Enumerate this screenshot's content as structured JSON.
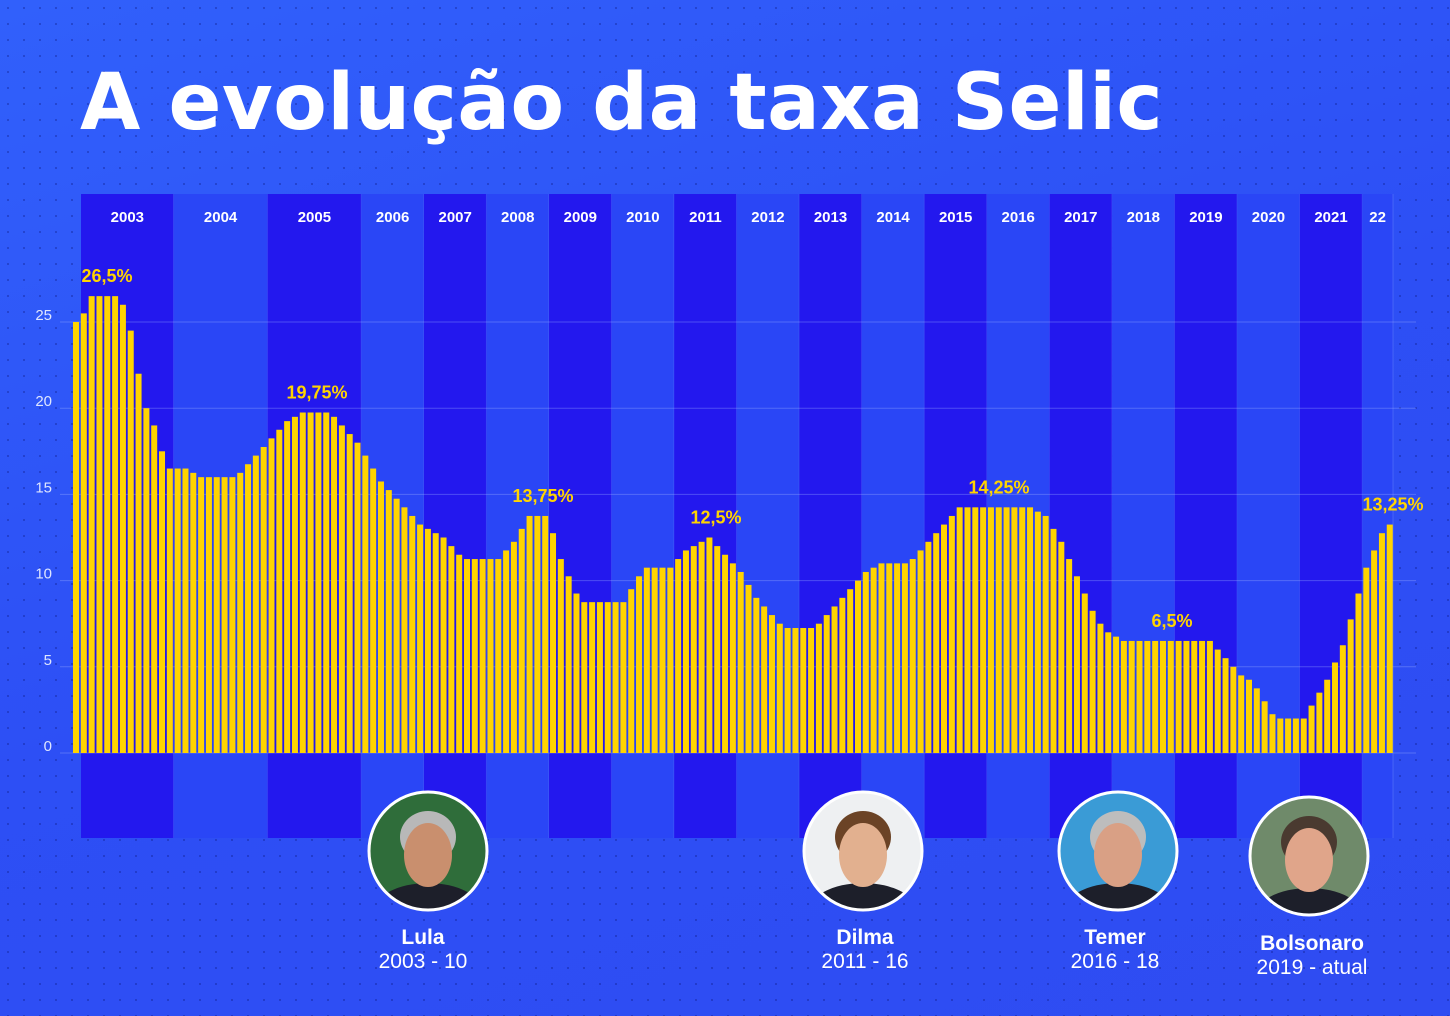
{
  "title": "A evolução da taxa Selic",
  "colors": {
    "bar": "#ffd400",
    "band_dark": "#2318ee",
    "band_light": "#2a46f6",
    "label": "#ffd400"
  },
  "chart_data": {
    "type": "bar",
    "title": "A evolução da taxa Selic",
    "ylim": [
      0,
      27
    ],
    "yticks": [
      "0",
      "5",
      "10",
      "15",
      "20",
      "25"
    ],
    "grid": true,
    "years": [
      {
        "label": "2003",
        "values": [
          25,
          25.5,
          26.5,
          26.5,
          26.5,
          26.5,
          26,
          24.5,
          22,
          20,
          19,
          17.5,
          16.5
        ]
      },
      {
        "label": "2004",
        "values": [
          16.5,
          16.5,
          16.25,
          16,
          16,
          16,
          16,
          16,
          16.25,
          16.75,
          17.25,
          17.75
        ]
      },
      {
        "label": "2005",
        "values": [
          18.25,
          18.75,
          19.25,
          19.5,
          19.75,
          19.75,
          19.75,
          19.75,
          19.5,
          19,
          18.5,
          18
        ]
      },
      {
        "label": "2006",
        "values": [
          17.25,
          16.5,
          15.75,
          15.25,
          14.75,
          14.25,
          13.75,
          13.25
        ]
      },
      {
        "label": "2007",
        "values": [
          13,
          12.75,
          12.5,
          12,
          11.5,
          11.25,
          11.25,
          11.25
        ]
      },
      {
        "label": "2008",
        "values": [
          11.25,
          11.25,
          11.75,
          12.25,
          13,
          13.75,
          13.75,
          13.75
        ]
      },
      {
        "label": "2009",
        "values": [
          12.75,
          11.25,
          10.25,
          9.25,
          8.75,
          8.75,
          8.75,
          8.75
        ]
      },
      {
        "label": "2010",
        "values": [
          8.75,
          8.75,
          9.5,
          10.25,
          10.75,
          10.75,
          10.75,
          10.75
        ]
      },
      {
        "label": "2011",
        "values": [
          11.25,
          11.75,
          12,
          12.25,
          12.5,
          12,
          11.5,
          11
        ]
      },
      {
        "label": "2012",
        "values": [
          10.5,
          9.75,
          9,
          8.5,
          8,
          7.5,
          7.25,
          7.25
        ]
      },
      {
        "label": "2013",
        "values": [
          7.25,
          7.25,
          7.5,
          8,
          8.5,
          9,
          9.5,
          10
        ]
      },
      {
        "label": "2014",
        "values": [
          10.5,
          10.75,
          11,
          11,
          11,
          11,
          11.25,
          11.75
        ]
      },
      {
        "label": "2015",
        "values": [
          12.25,
          12.75,
          13.25,
          13.75,
          14.25,
          14.25,
          14.25,
          14.25
        ]
      },
      {
        "label": "2016",
        "values": [
          14.25,
          14.25,
          14.25,
          14.25,
          14.25,
          14.25,
          14,
          13.75
        ]
      },
      {
        "label": "2017",
        "values": [
          13,
          12.25,
          11.25,
          10.25,
          9.25,
          8.25,
          7.5,
          7
        ]
      },
      {
        "label": "2018",
        "values": [
          6.75,
          6.5,
          6.5,
          6.5,
          6.5,
          6.5,
          6.5,
          6.5
        ]
      },
      {
        "label": "2019",
        "values": [
          6.5,
          6.5,
          6.5,
          6.5,
          6.5,
          6,
          5.5,
          5
        ]
      },
      {
        "label": "2020",
        "values": [
          4.5,
          4.25,
          3.75,
          3,
          2.25,
          2,
          2,
          2
        ]
      },
      {
        "label": "2021",
        "values": [
          2,
          2.75,
          3.5,
          4.25,
          5.25,
          6.25,
          7.75,
          9.25
        ]
      },
      {
        "label": "22",
        "values": [
          10.75,
          11.75,
          12.75,
          13.25
        ]
      }
    ],
    "annotations": [
      {
        "text": "26,5%",
        "value": 26.5,
        "year": "2003"
      },
      {
        "text": "19,75%",
        "value": 19.75,
        "year": "2005"
      },
      {
        "text": "13,75%",
        "value": 13.75,
        "year": "2008"
      },
      {
        "text": "12,5%",
        "value": 12.5,
        "year": "2011"
      },
      {
        "text": "14,25%",
        "value": 14.25,
        "year": "2015"
      },
      {
        "text": "6,5%",
        "value": 6.5,
        "year": "2018"
      },
      {
        "text": "13,25%",
        "value": 13.25,
        "year": "22"
      }
    ]
  },
  "presidents": [
    {
      "name": "Lula",
      "period": "2003 - 10"
    },
    {
      "name": "Dilma",
      "period": "2011 - 16"
    },
    {
      "name": "Temer",
      "period": "2016 - 18"
    },
    {
      "name": "Bolsonaro",
      "period": "2019 - atual"
    }
  ]
}
